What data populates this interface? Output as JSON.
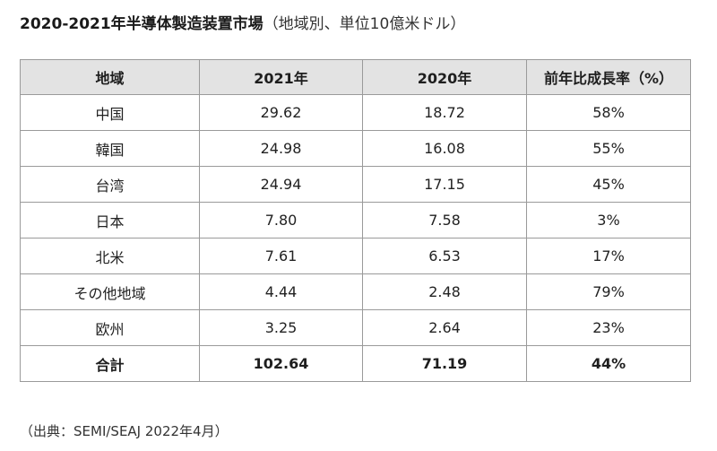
{
  "title": {
    "main": "2020-2021年半導体製造装置市場",
    "sub": "（地域別、単位10億米ドル）"
  },
  "table": {
    "headers": [
      "地域",
      "2021年",
      "2020年",
      "前年比成長率（%）"
    ],
    "rows": [
      [
        "中国",
        "29.62",
        "18.72",
        "58%"
      ],
      [
        "韓国",
        "24.98",
        "16.08",
        "55%"
      ],
      [
        "台湾",
        "24.94",
        "17.15",
        "45%"
      ],
      [
        "日本",
        "7.80",
        "7.58",
        "3%"
      ],
      [
        "北米",
        "7.61",
        "6.53",
        "17%"
      ],
      [
        "その他地域",
        "4.44",
        "2.48",
        "79%"
      ],
      [
        "欧州",
        "3.25",
        "2.64",
        "23%"
      ]
    ],
    "total": [
      "合計",
      "102.64",
      "71.19",
      "44%"
    ]
  },
  "source": "（出典：SEMI/SEAJ 2022年4月）"
}
